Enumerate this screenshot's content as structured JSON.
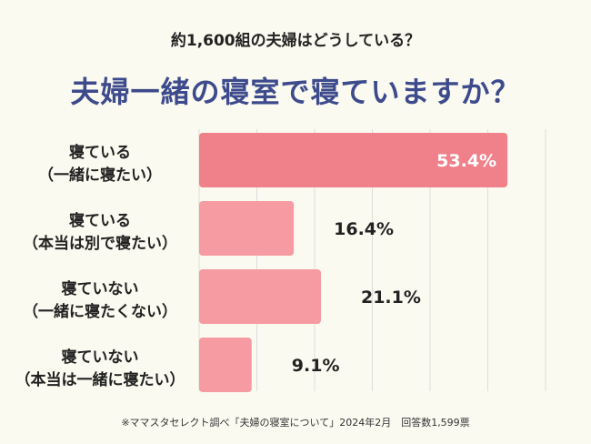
{
  "header": {
    "subtitle": "約1,600組の夫婦はどうしている？",
    "title": "夫婦一緒の寝室で寝ていますか？"
  },
  "footnote": "※ママスタセレクト調べ「夫婦の寝室について」2024年2月　回答数1,599票",
  "colors": {
    "highlight_bar": "#f0808a",
    "bar": "#f59ba1",
    "highlight_label": "#ffffff",
    "label": "#222222",
    "grid": "#dddddd",
    "title": "#3d4a8c"
  },
  "chart_data": {
    "type": "bar",
    "orientation": "horizontal",
    "categories": [
      [
        "寝ている",
        "（一緒に寝たい）"
      ],
      [
        "寝ている",
        "（本当は別で寝たい）"
      ],
      [
        "寝ていない",
        "（一緒に寝たくない）"
      ],
      [
        "寝ていない",
        "（本当は一緒に寝たい）"
      ]
    ],
    "values": [
      53.4,
      16.4,
      21.1,
      9.1
    ],
    "value_labels": [
      "53.4%",
      "16.4%",
      "21.1%",
      "9.1%"
    ],
    "highlight_index": 0,
    "xlim": [
      0,
      60
    ],
    "grid": true,
    "unit": "%"
  }
}
